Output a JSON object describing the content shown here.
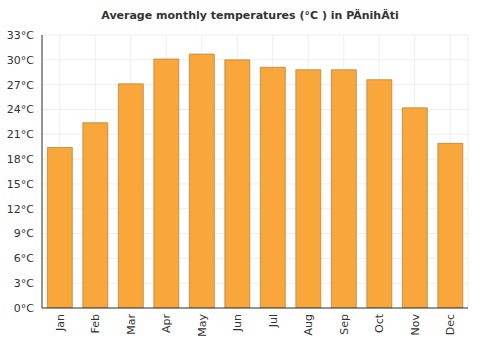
{
  "chart_data": {
    "type": "bar",
    "title": "Average monthly temperatures (°C ) in PÄnihÄti",
    "categories": [
      "Jan",
      "Feb",
      "Mar",
      "Apr",
      "May",
      "Jun",
      "Jul",
      "Aug",
      "Sep",
      "Oct",
      "Nov",
      "Dec"
    ],
    "values": [
      19.4,
      22.4,
      27.1,
      30.1,
      30.7,
      30.0,
      29.1,
      28.8,
      28.8,
      27.6,
      24.2,
      19.9
    ],
    "color": "#f9a73a",
    "ylim": [
      0,
      33
    ],
    "yticks": [
      {
        "value": 0,
        "label": "0°C"
      },
      {
        "value": 3,
        "label": "3°C"
      },
      {
        "value": 6,
        "label": "6°C"
      },
      {
        "value": 9,
        "label": "9°C"
      },
      {
        "value": 12,
        "label": "12°C"
      },
      {
        "value": 15,
        "label": "15°C"
      },
      {
        "value": 18,
        "label": "18°C"
      },
      {
        "value": 21,
        "label": "21°C"
      },
      {
        "value": 24,
        "label": "24°C"
      },
      {
        "value": 27,
        "label": "27°C"
      },
      {
        "value": 30,
        "label": "30°C"
      },
      {
        "value": 33,
        "label": "33°C"
      }
    ],
    "grid": true
  }
}
